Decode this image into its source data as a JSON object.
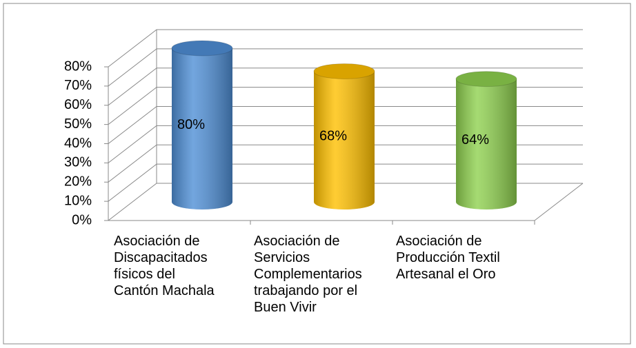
{
  "chart_data": {
    "type": "cylinder_bar",
    "categories": [
      "Asociación de Discapacitados físicos del Cantón Machala",
      "Asociación de Servicios Complementarios trabajando por el Buen Vivir",
      "Asociación de Producción Textil Artesanal el Oro"
    ],
    "values": [
      80,
      68,
      64
    ],
    "value_labels": [
      "80%",
      "68%",
      "64%"
    ],
    "colors": [
      "#4f8fd6",
      "#ffc000",
      "#8fd14f"
    ],
    "ylim": [
      0,
      80
    ],
    "yticks": [
      {
        "value": 0,
        "label": "0%"
      },
      {
        "value": 10,
        "label": "10%"
      },
      {
        "value": 20,
        "label": "20%"
      },
      {
        "value": 30,
        "label": "30%"
      },
      {
        "value": 40,
        "label": "40%"
      },
      {
        "value": 50,
        "label": "50%"
      },
      {
        "value": 60,
        "label": "60%"
      },
      {
        "value": 70,
        "label": "70%"
      },
      {
        "value": 80,
        "label": "80%"
      }
    ],
    "grid": true
  }
}
